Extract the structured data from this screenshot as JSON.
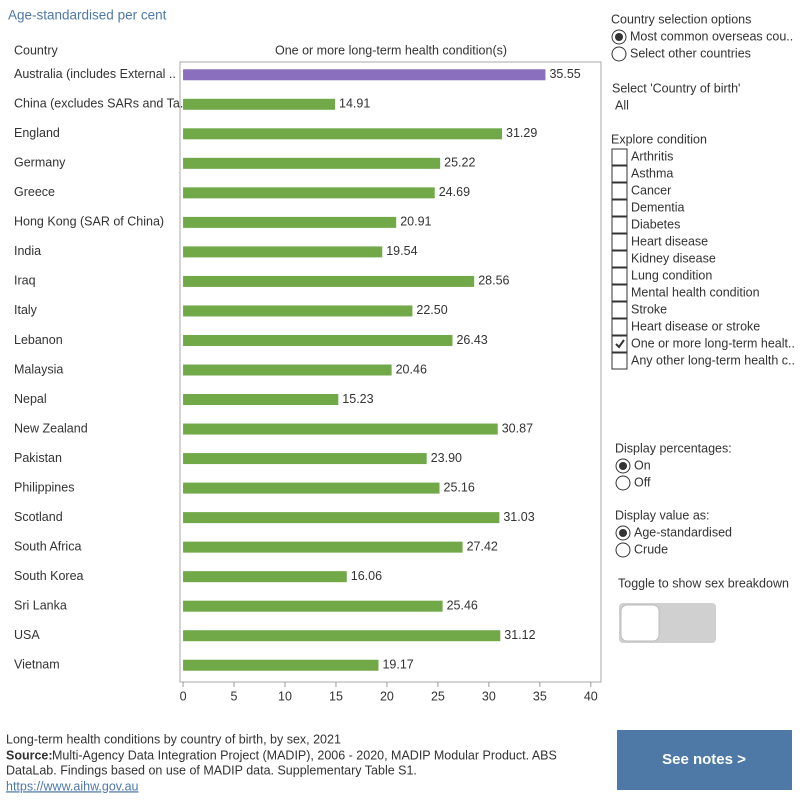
{
  "chart_data": {
    "type": "bar",
    "orientation": "horizontal",
    "title": "Age-standardised per cent",
    "category_header": "Country",
    "value_header": "One or more long-term health condition(s)",
    "categories": [
      "Australia (includes External ..",
      "China (excludes SARs and Ta..",
      "England",
      "Germany",
      "Greece",
      "Hong Kong (SAR of China)",
      "India",
      "Iraq",
      "Italy",
      "Lebanon",
      "Malaysia",
      "Nepal",
      "New Zealand",
      "Pakistan",
      "Philippines",
      "Scotland",
      "South Africa",
      "South Korea",
      "Sri Lanka",
      "USA",
      "Vietnam"
    ],
    "values": [
      35.55,
      14.91,
      31.29,
      25.22,
      24.69,
      20.91,
      19.54,
      28.56,
      22.5,
      26.43,
      20.46,
      15.23,
      30.87,
      23.9,
      25.16,
      31.03,
      27.42,
      16.06,
      25.46,
      31.12,
      19.17
    ],
    "value_labels": [
      "35.55",
      "14.91",
      "31.29",
      "25.22",
      "24.69",
      "20.91",
      "19.54",
      "28.56",
      "22.50",
      "26.43",
      "20.46",
      "15.23",
      "30.87",
      "23.90",
      "25.16",
      "31.03",
      "27.42",
      "16.06",
      "25.46",
      "31.12",
      "19.17"
    ],
    "colors": [
      "#8a6fbf",
      "#71a949",
      "#71a949",
      "#71a949",
      "#71a949",
      "#71a949",
      "#71a949",
      "#71a949",
      "#71a949",
      "#71a949",
      "#71a949",
      "#71a949",
      "#71a949",
      "#71a949",
      "#71a949",
      "#71a949",
      "#71a949",
      "#71a949",
      "#71a949",
      "#71a949",
      "#71a949"
    ],
    "xlim": [
      -0.3,
      41
    ],
    "xticks": [
      0,
      5,
      10,
      15,
      20,
      25,
      30,
      35,
      40
    ]
  },
  "controls": {
    "country_selection": {
      "title": "Country selection options",
      "options": [
        {
          "label": "Most common overseas cou..",
          "selected": true
        },
        {
          "label": "Select other countries",
          "selected": false
        }
      ]
    },
    "country_of_birth": {
      "title": "Select 'Country of birth'",
      "value": "All"
    },
    "explore_condition": {
      "title": "Explore condition",
      "options": [
        {
          "label": "Arthritis",
          "checked": false
        },
        {
          "label": "Asthma",
          "checked": false
        },
        {
          "label": "Cancer",
          "checked": false
        },
        {
          "label": "Dementia",
          "checked": false
        },
        {
          "label": "Diabetes",
          "checked": false
        },
        {
          "label": "Heart disease",
          "checked": false
        },
        {
          "label": "Kidney disease",
          "checked": false
        },
        {
          "label": "Lung condition",
          "checked": false
        },
        {
          "label": "Mental health condition",
          "checked": false
        },
        {
          "label": "Stroke",
          "checked": false
        },
        {
          "label": "Heart disease or stroke",
          "checked": false
        },
        {
          "label": "One or more long-term healt..",
          "checked": true
        },
        {
          "label": "Any other long-term health c..",
          "checked": false
        }
      ]
    },
    "display_percentages": {
      "title": "Display percentages:",
      "options": [
        {
          "label": "On",
          "selected": true
        },
        {
          "label": "Off",
          "selected": false
        }
      ]
    },
    "display_value": {
      "title": "Display value as:",
      "options": [
        {
          "label": "Age-standardised",
          "selected": true
        },
        {
          "label": "Crude",
          "selected": false
        }
      ]
    },
    "sex_toggle": {
      "title": "Toggle to show sex breakdown",
      "on": false
    }
  },
  "footer": {
    "caption": "Long-term health conditions by country of birth, by sex, 2021",
    "source_label": "Source:",
    "source_line1": "Multi-Agency Data Integration Project (MADIP), 2006 - 2020, MADIP Modular Product. ABS",
    "source_line2": "DataLab. Findings based on use of MADIP data. Supplementary Table S1.",
    "link": "https://www.aihw.gov.au",
    "button": "See notes >"
  }
}
